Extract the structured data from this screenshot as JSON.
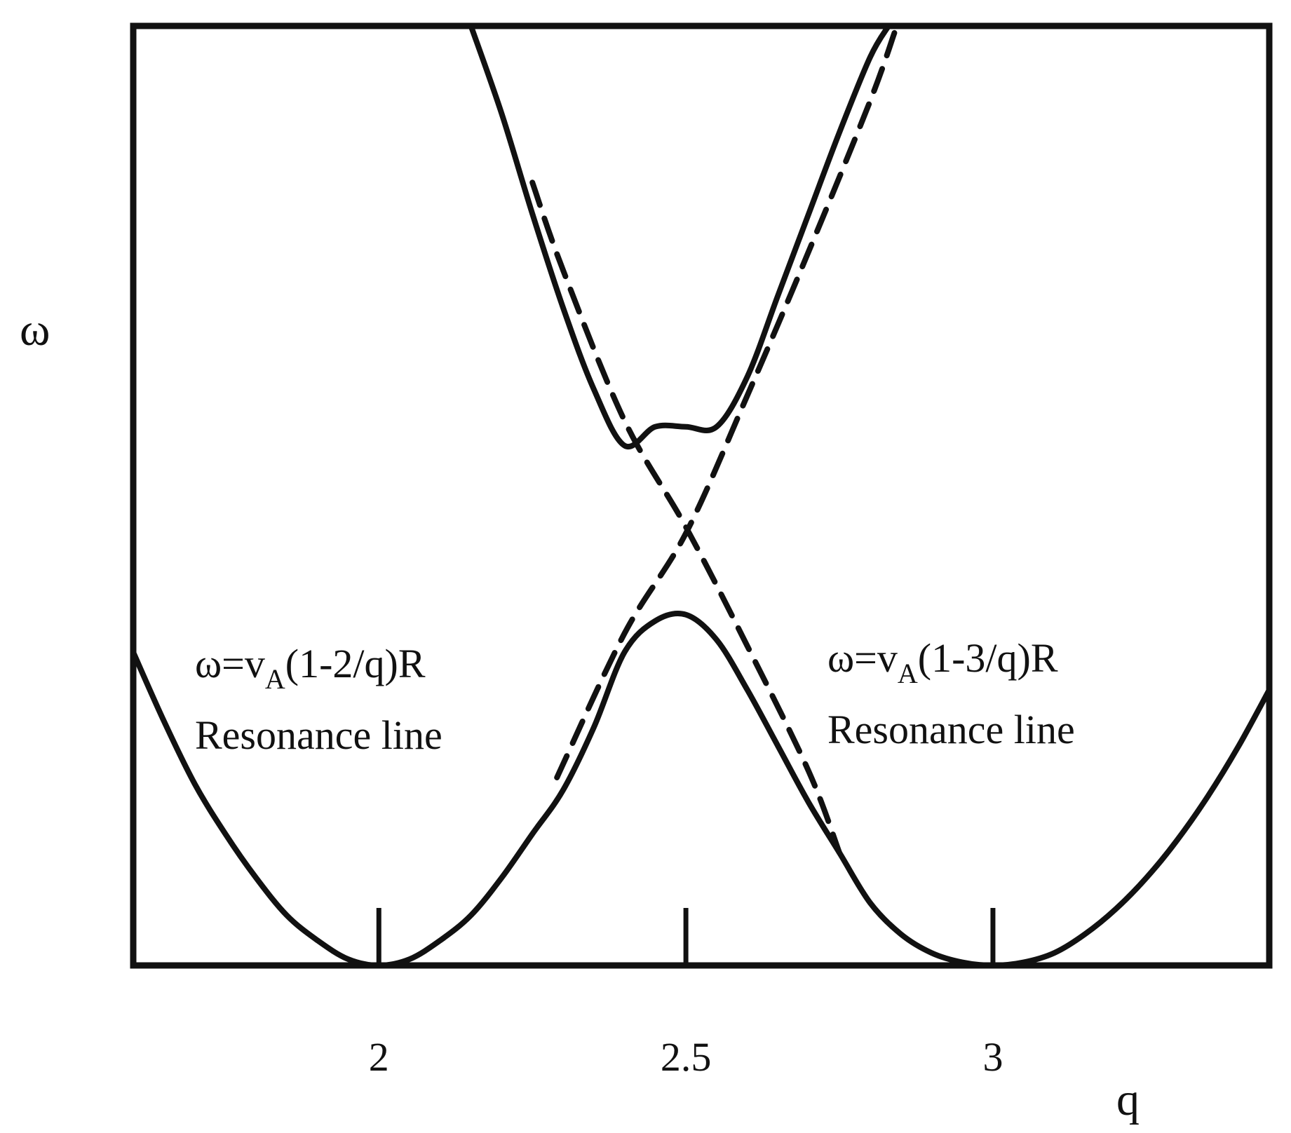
{
  "chart_data": {
    "type": "line",
    "title": "",
    "xlabel": "q",
    "ylabel": "ω",
    "xlim": [
      1.6,
      3.45
    ],
    "ylim": [
      0,
      1.5
    ],
    "x_ticks": [
      {
        "value": 2,
        "label": "2"
      },
      {
        "value": 2.5,
        "label": "2.5"
      },
      {
        "value": 3,
        "label": "3"
      }
    ],
    "series": [
      {
        "style": "solid",
        "role": "lower continuum branch",
        "x": [
          1.6,
          1.65,
          1.7,
          1.75,
          1.8,
          1.85,
          1.9,
          1.95,
          2.0,
          2.05,
          2.1,
          2.15,
          2.2,
          2.25,
          2.3,
          2.35,
          2.4,
          2.45,
          2.5,
          2.55,
          2.6,
          2.65,
          2.7,
          2.75,
          2.8,
          2.85,
          2.9,
          2.95,
          3.0,
          3.05,
          3.1,
          3.15,
          3.2,
          3.25,
          3.3,
          3.35,
          3.4,
          3.45
        ],
        "y": [
          0.5,
          0.39,
          0.29,
          0.21,
          0.14,
          0.08,
          0.04,
          0.01,
          0.0,
          0.01,
          0.04,
          0.08,
          0.14,
          0.21,
          0.28,
          0.38,
          0.5,
          0.55,
          0.56,
          0.52,
          0.44,
          0.35,
          0.26,
          0.18,
          0.1,
          0.05,
          0.02,
          0.005,
          0.0,
          0.005,
          0.02,
          0.05,
          0.09,
          0.14,
          0.2,
          0.27,
          0.35,
          0.44
        ]
      },
      {
        "style": "solid",
        "role": "upper continuum branch",
        "x": [
          2.15,
          2.2,
          2.25,
          2.3,
          2.35,
          2.4,
          2.45,
          2.5,
          2.55,
          2.6,
          2.65,
          2.7,
          2.75,
          2.8,
          2.83
        ],
        "y": [
          1.5,
          1.36,
          1.2,
          1.05,
          0.92,
          0.83,
          0.86,
          0.86,
          0.86,
          0.94,
          1.07,
          1.2,
          1.33,
          1.45,
          1.5
        ]
      },
      {
        "style": "dashed",
        "name": "ω=vA(1-2/q)R",
        "x": [
          2.29,
          2.4,
          2.5,
          2.6,
          2.7,
          2.8,
          2.84
        ],
        "y": [
          0.3,
          0.53,
          0.69,
          0.91,
          1.14,
          1.38,
          1.49
        ]
      },
      {
        "style": "dashed",
        "name": "ω=vA(1-3/q)R",
        "x": [
          2.25,
          2.3,
          2.4,
          2.5,
          2.6,
          2.7,
          2.75
        ],
        "y": [
          1.25,
          1.11,
          0.87,
          0.7,
          0.51,
          0.31,
          0.18
        ]
      }
    ],
    "annotations": [
      {
        "id": "left",
        "line1_prefix": "ω=v",
        "line1_sub": "A",
        "line1_suffix": "(1-2/q)R",
        "line2": "Resonance line"
      },
      {
        "id": "right",
        "line1_prefix": "ω=v",
        "line1_sub": "A",
        "line1_suffix": "(1-3/q)R",
        "line2": "Resonance line"
      }
    ],
    "grid": false,
    "legend": "none"
  }
}
